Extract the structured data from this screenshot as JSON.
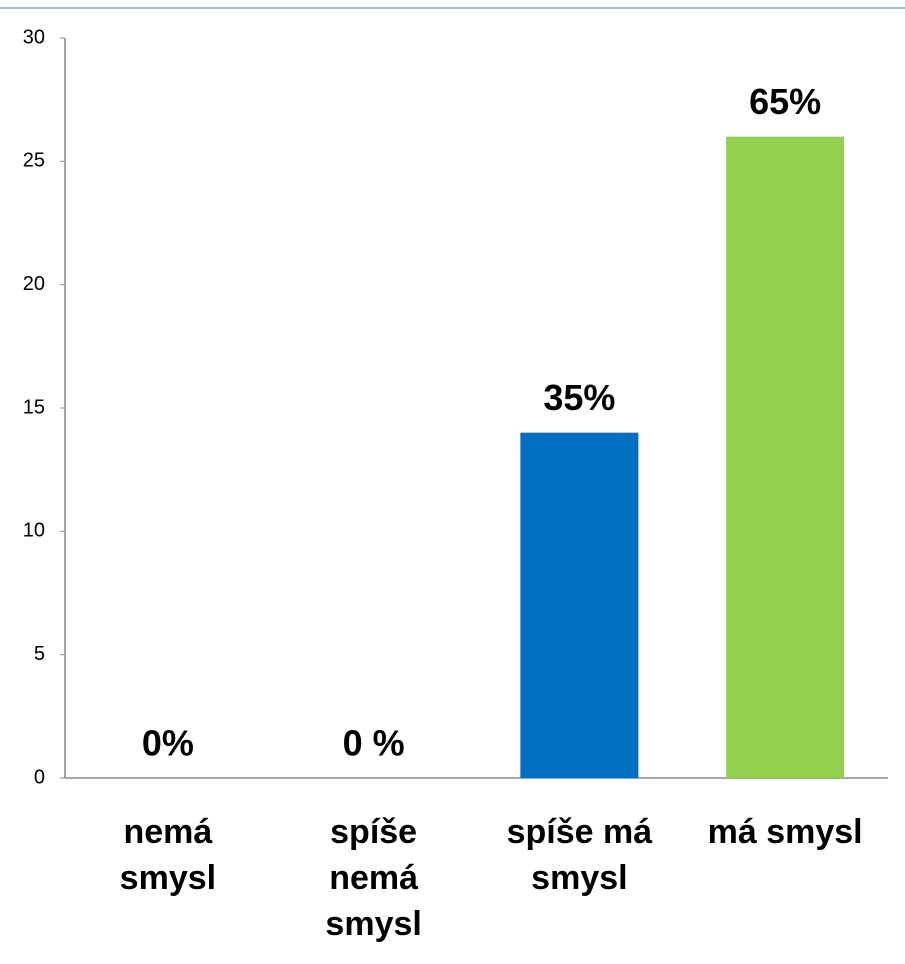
{
  "chart_data": {
    "type": "bar",
    "categories": [
      "nemá smysl",
      "spíše nemá smysl",
      "spíše má smysl",
      "má smysl"
    ],
    "values": [
      0,
      0,
      14,
      26
    ],
    "value_labels": [
      "0%",
      "0 %",
      "35%",
      "65%"
    ],
    "colors": [
      "#0070c0",
      "#0070c0",
      "#0070c0",
      "#92d050"
    ],
    "ylim": [
      0,
      30
    ],
    "yticks": [
      0,
      5,
      10,
      15,
      20,
      25,
      30
    ],
    "grid": false
  }
}
